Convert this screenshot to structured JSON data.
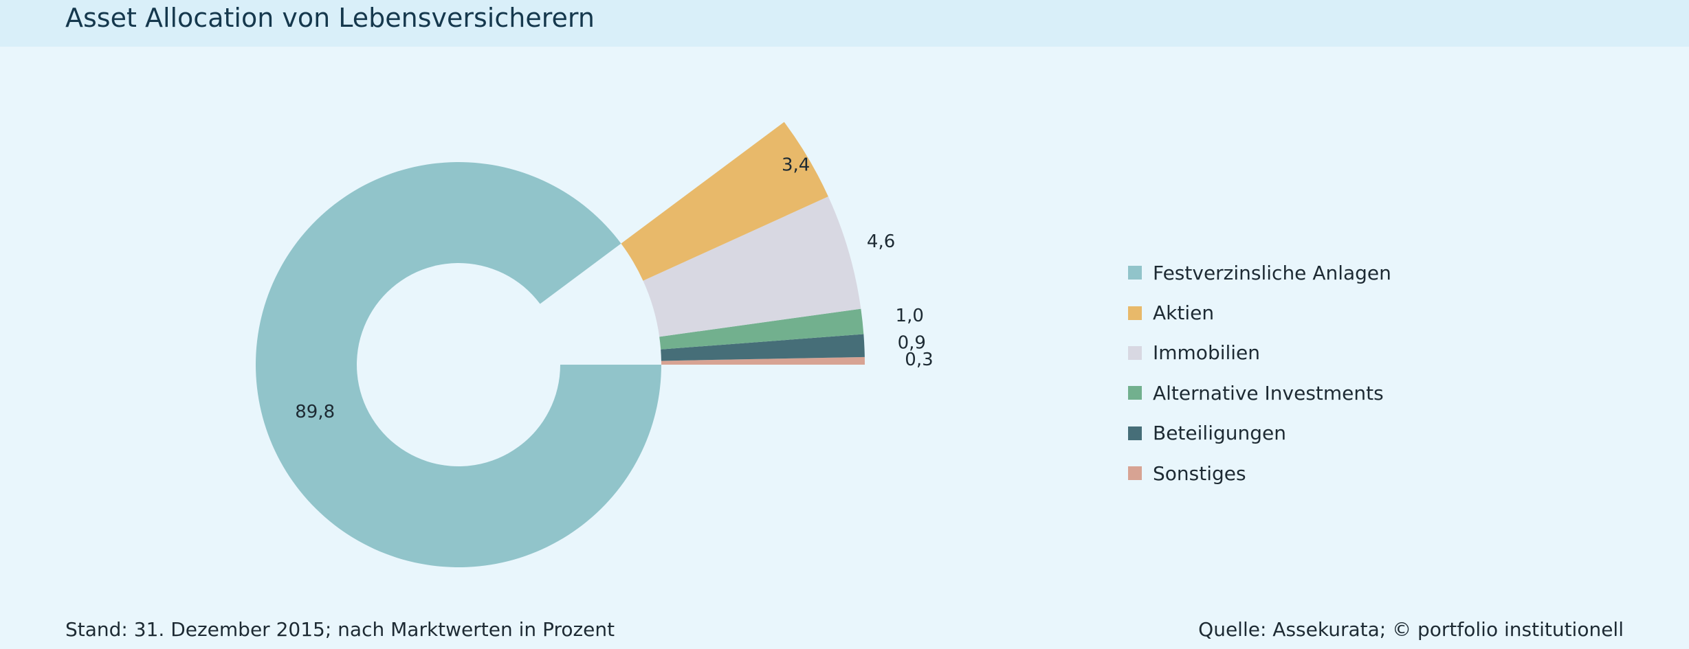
{
  "header": {
    "title": "Asset Allocation von Lebensversicherern"
  },
  "chart_data": {
    "type": "pie",
    "categories": [
      "Festverzinsliche Anlagen",
      "Aktien",
      "Immobilien",
      "Alternative Investments",
      "Beteiligungen",
      "Sonstiges"
    ],
    "values": [
      89.8,
      3.4,
      4.6,
      1.0,
      0.9,
      0.3
    ],
    "labels": [
      "89,8",
      "3,4",
      "4,6",
      "1,0",
      "0,9",
      "0,3"
    ],
    "colors": [
      "#91c4ca",
      "#e8b96a",
      "#d8d8e2",
      "#72b08e",
      "#466e78",
      "#d7a393"
    ],
    "style": "donut with exploded remainder segments",
    "legend": "right"
  },
  "footer": {
    "note": "Stand: 31. Dezember 2015; nach Marktwerten in Prozent",
    "source": "Quelle: Assekurata; © portfolio institutionell"
  }
}
